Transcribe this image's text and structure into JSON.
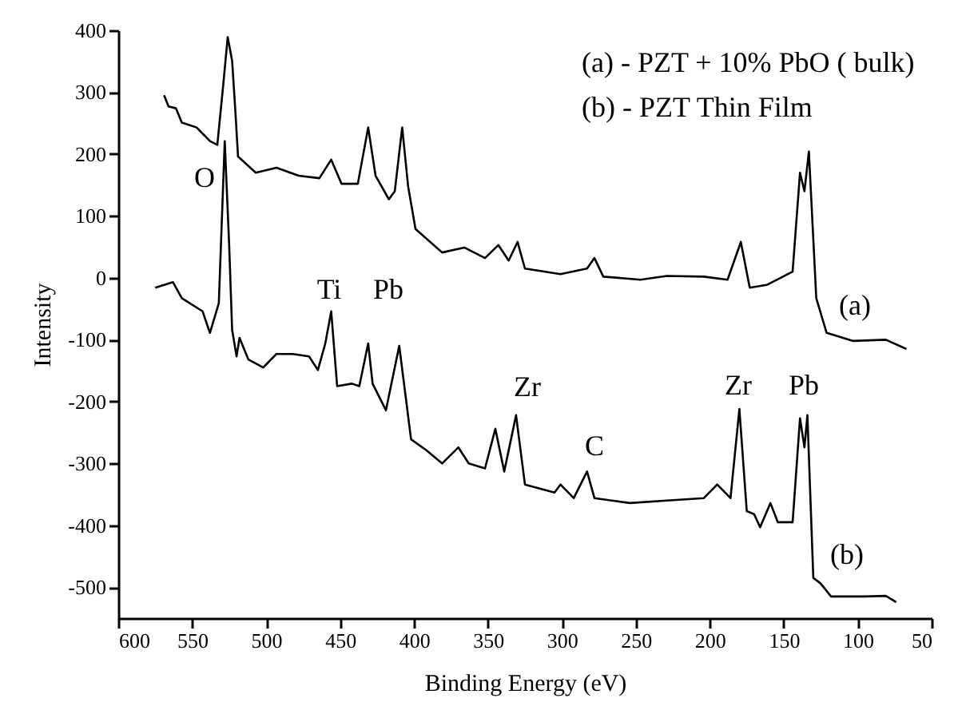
{
  "chart_data": {
    "type": "line",
    "xlabel": "Binding Energy (eV)",
    "ylabel": "Intensity",
    "xlim": [
      600,
      50
    ],
    "ylim": [
      -550,
      400
    ],
    "xticks": [
      600,
      550,
      500,
      450,
      400,
      350,
      300,
      250,
      200,
      150,
      100,
      50
    ],
    "yticks": [
      -500,
      -400,
      -300,
      -200,
      -100,
      0,
      100,
      200,
      300,
      400
    ],
    "grid": false,
    "marker": "none",
    "line_style": "solid",
    "annotations": [
      "(a) - PZT + 10% PbO ( bulk)",
      "(b) - PZT Thin Film",
      "O",
      "Ti",
      "Pb",
      "Zr",
      "C",
      "Zr",
      "Pb",
      "(a)",
      "(b)"
    ],
    "series": [
      {
        "color": "#000000",
        "x": [
          569,
          566,
          561,
          557,
          547,
          538,
          533,
          529,
          526,
          523,
          521,
          519,
          507,
          493,
          478,
          464,
          456,
          449,
          438,
          431,
          426,
          417,
          413,
          408,
          404,
          399,
          381,
          366,
          352,
          343,
          336,
          330,
          325,
          301,
          283,
          278,
          272,
          247,
          229,
          204,
          188,
          179,
          173,
          161,
          144,
          139,
          136,
          133,
          128,
          121,
          103,
          81,
          67
        ],
        "values": [
          295,
          277,
          274,
          251,
          243,
          221,
          215,
          312,
          389,
          351,
          277,
          196,
          170,
          178,
          165,
          161,
          191,
          152,
          152,
          243,
          165,
          127,
          140,
          243,
          148,
          79,
          41,
          49,
          32,
          53,
          28,
          58,
          15,
          6,
          15,
          32,
          2,
          -3,
          3,
          2,
          -3,
          58,
          -16,
          -11,
          10,
          170,
          140,
          204,
          -33,
          -89,
          -102,
          -100,
          -115
        ]
      },
      {
        "color": "#000000",
        "x": [
          575,
          563,
          557,
          543,
          538,
          532,
          528,
          525,
          523,
          520,
          518,
          512,
          502,
          493,
          482,
          471,
          465,
          460,
          456,
          452,
          442,
          437,
          431,
          428,
          419,
          410,
          402,
          392,
          381,
          370,
          363,
          352,
          345,
          339,
          331,
          325,
          305,
          301,
          292,
          283,
          278,
          254,
          229,
          204,
          195,
          186,
          180,
          175,
          170,
          166,
          159,
          154,
          144,
          139,
          136,
          134,
          130,
          125,
          118,
          96,
          81,
          74
        ],
        "values": [
          -16,
          -7,
          -33,
          -54,
          -89,
          -41,
          221,
          53,
          -84,
          -127,
          -97,
          -132,
          -145,
          -123,
          -123,
          -127,
          -149,
          -106,
          -54,
          -175,
          -171,
          -175,
          -106,
          -171,
          -214,
          -110,
          -261,
          -278,
          -300,
          -274,
          -300,
          -308,
          -244,
          -313,
          -222,
          -334,
          -347,
          -334,
          -356,
          -313,
          -356,
          -364,
          -360,
          -356,
          -334,
          -356,
          -212,
          -377,
          -382,
          -403,
          -364,
          -395,
          -395,
          -227,
          -274,
          -222,
          -485,
          -494,
          -515,
          -515,
          -514,
          -524
        ]
      }
    ]
  }
}
